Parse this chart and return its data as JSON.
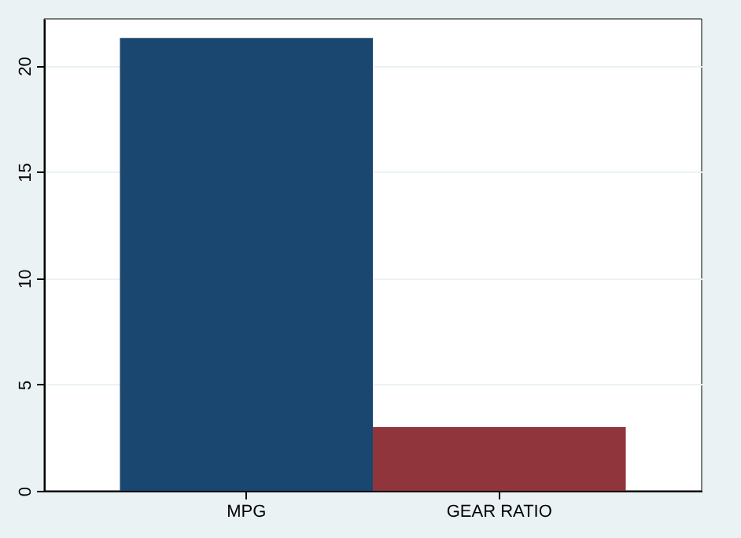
{
  "chart_data": {
    "type": "bar",
    "categories": [
      "MPG",
      "GEAR RATIO"
    ],
    "values": [
      21.3,
      3.0
    ],
    "colors": [
      "#1a476f",
      "#90353b"
    ],
    "ylim": [
      0,
      22.2
    ],
    "yticks": [
      0,
      5,
      10,
      15,
      20
    ],
    "grid": "y"
  }
}
